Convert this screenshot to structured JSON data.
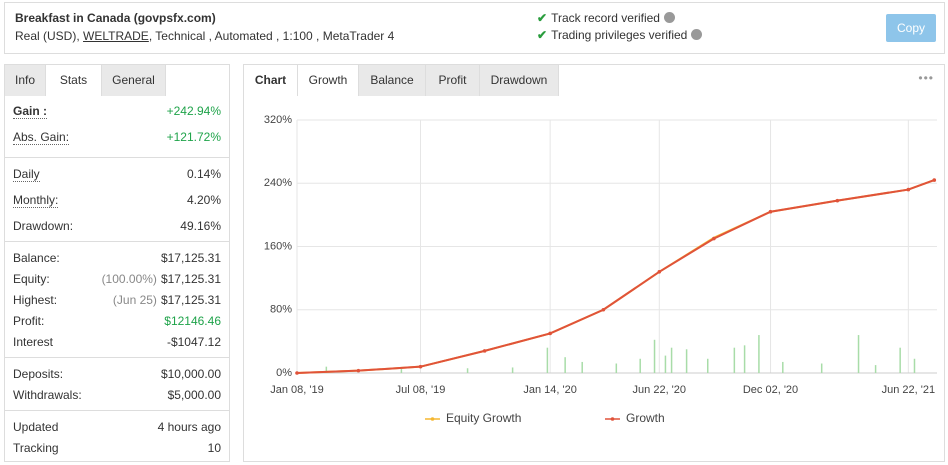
{
  "header": {
    "title": "Breakfast in Canada (govpsfx.com)",
    "account": "Real (USD),",
    "broker": "WELTRADE",
    "details": ", Technical , Automated , 1:100 , MetaTrader 4",
    "verified": [
      "Track record verified",
      "Trading privileges verified"
    ],
    "button": "Copy"
  },
  "stats": {
    "tabs": [
      "Info",
      "Stats",
      "General"
    ],
    "active": 1,
    "groups": [
      {
        "rows": [
          {
            "label": "Gain :",
            "value": "+242.94%",
            "color": "#1fa34a",
            "bold": true,
            "dotted": true
          },
          {
            "label": "Abs. Gain:",
            "value": "+121.72%",
            "color": "#1fa34a",
            "dotted": true
          }
        ]
      },
      {
        "rows": [
          {
            "label": "Daily",
            "value": "0.14%",
            "dotted": true
          },
          {
            "label": "Monthly:",
            "value": "4.20%",
            "dotted": true
          },
          {
            "label": "Drawdown:",
            "value": "49.16%"
          }
        ]
      },
      {
        "rows": [
          {
            "label": "Balance:",
            "value": "$17,125.31"
          },
          {
            "label": "Equity:",
            "note": "(100.00%)",
            "value": "$17,125.31"
          },
          {
            "label": "Highest:",
            "note": "(Jun 25)",
            "value": "$17,125.31"
          },
          {
            "label": "Profit:",
            "value": "$12146.46",
            "color": "#1fa34a"
          },
          {
            "label": "Interest",
            "value": "-$1047.12"
          }
        ]
      },
      {
        "rows": [
          {
            "label": "Deposits:",
            "value": "$10,000.00"
          },
          {
            "label": "Withdrawals:",
            "value": "$5,000.00"
          }
        ]
      },
      {
        "rows": [
          {
            "label": "Updated",
            "value": "4 hours ago"
          },
          {
            "label": "Tracking",
            "value": "10"
          }
        ]
      }
    ]
  },
  "chart_panel": {
    "label": "Chart",
    "tabs": [
      "Growth",
      "Balance",
      "Profit",
      "Drawdown"
    ],
    "active": 0,
    "menu": "•••"
  },
  "chart_data": {
    "type": "line",
    "x": [
      "2019-01-08",
      "2019-04-08",
      "2019-07-08",
      "2019-10-10",
      "2020-01-14",
      "2020-04-01",
      "2020-06-22",
      "2020-09-10",
      "2020-12-02",
      "2021-03-10",
      "2021-06-22",
      "2021-07-30"
    ],
    "series": [
      {
        "name": "Equity Growth",
        "color": "#f5b731",
        "values": [
          0,
          3,
          8,
          28,
          50,
          80,
          128,
          171,
          204,
          218,
          232,
          244
        ]
      },
      {
        "name": "Growth",
        "color": "#e0533a",
        "markers": true,
        "values": [
          0,
          3,
          8,
          28,
          50,
          80,
          128,
          170,
          204,
          218,
          232,
          244
        ]
      }
    ],
    "bars": {
      "color": "#a8dca8",
      "x": [
        "2019-02-20",
        "2019-06-10",
        "2019-09-15",
        "2019-11-20",
        "2020-01-10",
        "2020-02-05",
        "2020-03-01",
        "2020-04-20",
        "2020-05-25",
        "2020-06-15",
        "2020-07-01",
        "2020-07-10",
        "2020-08-01",
        "2020-09-01",
        "2020-10-10",
        "2020-10-25",
        "2020-11-15",
        "2020-12-20",
        "2021-02-15",
        "2021-04-10",
        "2021-05-05",
        "2021-06-10",
        "2021-07-01"
      ],
      "values": [
        8,
        5,
        6,
        7,
        32,
        20,
        14,
        12,
        18,
        42,
        22,
        32,
        30,
        18,
        32,
        35,
        48,
        14,
        12,
        48,
        10,
        32,
        18
      ]
    },
    "xlim": [
      "2019-01-08",
      "2021-08-03"
    ],
    "xticks": [
      {
        "value": "2019-01-08",
        "label": "Jan 08, '19"
      },
      {
        "value": "2019-07-08",
        "label": "Jul 08, '19"
      },
      {
        "value": "2020-01-14",
        "label": "Jan 14, '20"
      },
      {
        "value": "2020-06-22",
        "label": "Jun 22, '20"
      },
      {
        "value": "2020-12-02",
        "label": "Dec 02, '20"
      },
      {
        "value": "2021-06-22",
        "label": "Jun 22, '21"
      }
    ],
    "ylim": [
      0,
      320
    ],
    "yticks": [
      {
        "value": 0,
        "label": "0%"
      },
      {
        "value": 80,
        "label": "80%"
      },
      {
        "value": 160,
        "label": "160%"
      },
      {
        "value": 240,
        "label": "240%"
      },
      {
        "value": 320,
        "label": "320%"
      }
    ],
    "grid": true
  }
}
